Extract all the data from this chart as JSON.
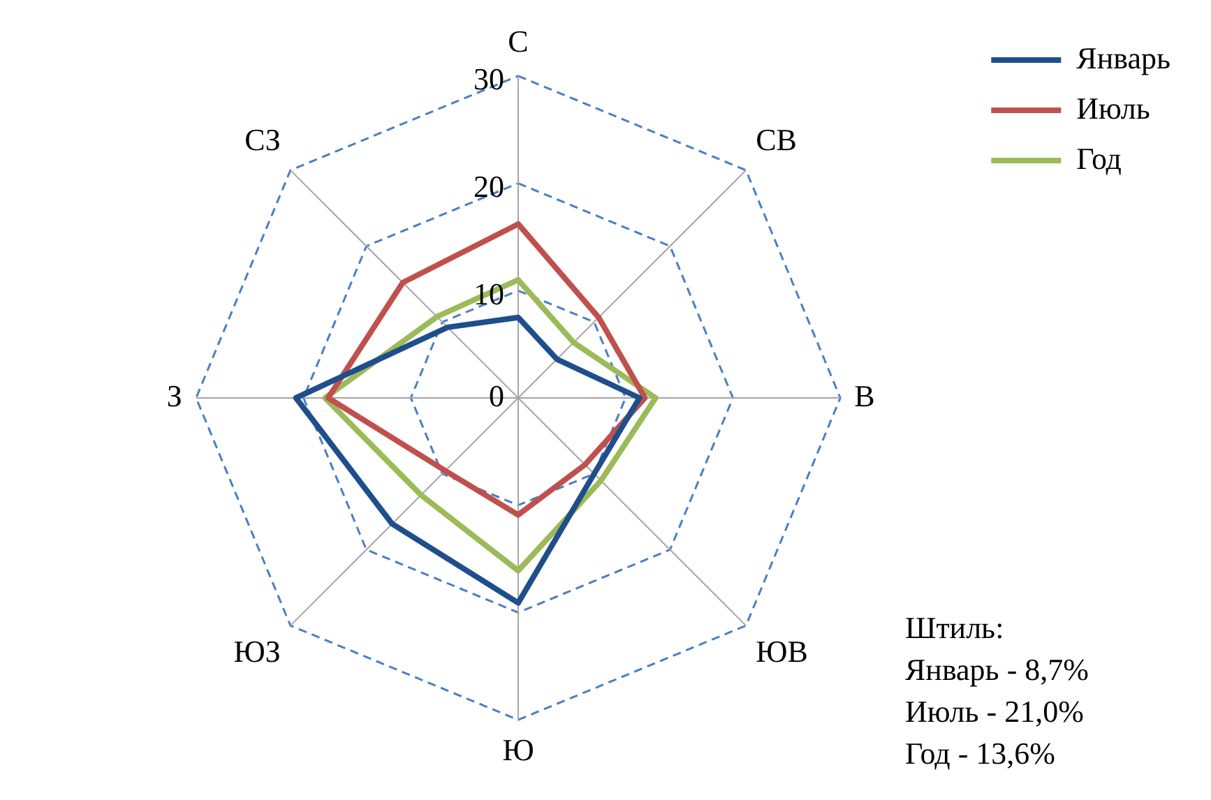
{
  "chart_data": {
    "type": "radar",
    "categories": [
      "С",
      "СВ",
      "В",
      "ЮВ",
      "Ю",
      "ЮЗ",
      "З",
      "СЗ"
    ],
    "series": [
      {
        "name": "Январь",
        "color": "#1f4e8c",
        "values": [
          7.5,
          5.1,
          11.3,
          10.0,
          19.1,
          16.6,
          20.7,
          9.3
        ]
      },
      {
        "name": "Июль",
        "color": "#c0504d",
        "values": [
          16.2,
          10.6,
          11.8,
          8.8,
          10.9,
          9.6,
          17.7,
          15.2
        ]
      },
      {
        "name": "Год",
        "color": "#9bbb59",
        "values": [
          11.0,
          7.3,
          12.8,
          10.9,
          16.1,
          12.8,
          18.0,
          10.7
        ]
      }
    ],
    "ylim": [
      0,
      30
    ],
    "yticks": [
      0,
      10,
      20,
      30
    ],
    "grid": true,
    "legend": "top right",
    "marker": "none",
    "line_style": "solid",
    "annotations": [
      "Штиль:",
      "Январь - 8,7%",
      "Июль - 21,0%",
      "Год - 13,6%"
    ]
  }
}
